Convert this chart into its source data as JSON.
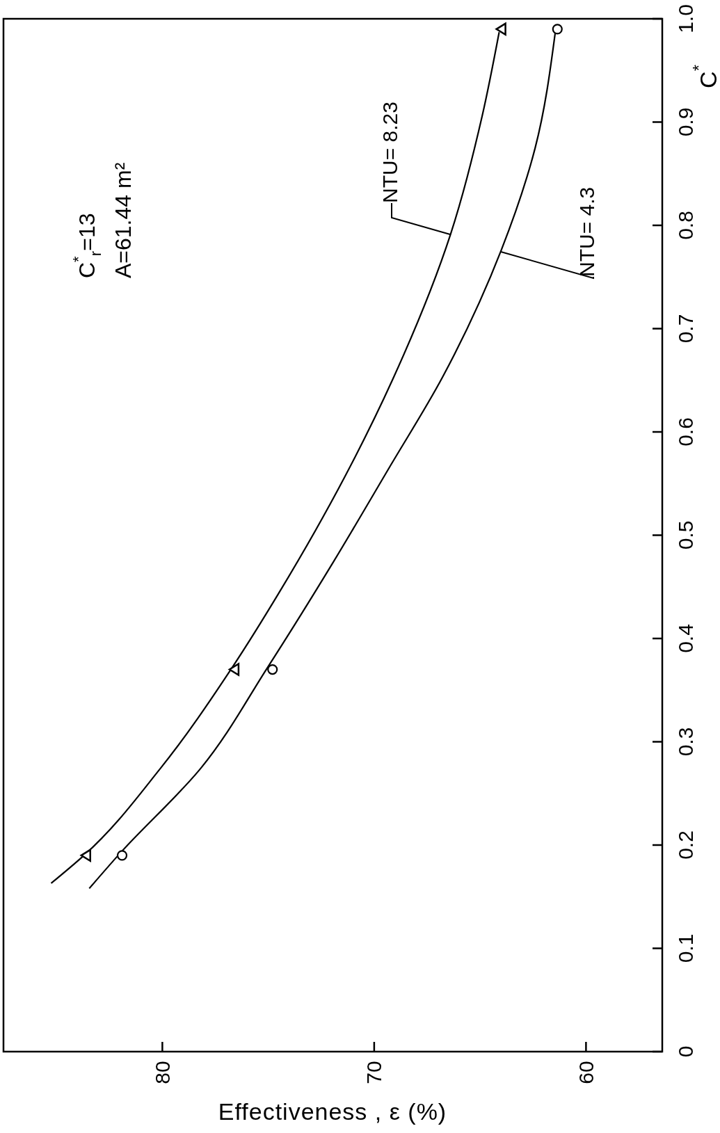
{
  "chart_data": {
    "type": "line",
    "xlabel": "Effectiveness , ε (%)",
    "ylabel": "C$^{*}$",
    "annotations": [
      "C$^{*}$$_{r}$=13",
      "A=61.44 m²"
    ],
    "xlim": [
      87.5,
      56.4
    ],
    "ylim": [
      0,
      1
    ],
    "xticks": [
      80,
      70,
      60
    ],
    "yticks": [
      0,
      0.1,
      0.2,
      0.3,
      0.4,
      0.5,
      0.6,
      0.7,
      0.8,
      0.9,
      {
        "value": 1,
        "label": "1.0"
      }
    ],
    "series": [
      {
        "name": "NTU= 8.23",
        "color": "#000000",
        "marker": "none",
        "x": [
          85.25,
          83.7,
          80.1,
          76.7,
          74.5,
          71.4,
          69.1,
          66.4,
          64.9,
          64.1
        ],
        "values": [
          0.163,
          0.19,
          0.274,
          0.372,
          0.444,
          0.556,
          0.652,
          0.791,
          0.906,
          0.987
        ]
      },
      {
        "name": "NTU= 4.3",
        "color": "#000000",
        "marker": "none",
        "x": [
          83.45,
          82.0,
          78.2,
          75.0,
          71.9,
          69.3,
          66.8,
          64.0,
          62.4,
          61.45
        ],
        "values": [
          0.158,
          0.192,
          0.274,
          0.373,
          0.475,
          0.565,
          0.652,
          0.776,
          0.875,
          0.987
        ]
      },
      {
        "type": "scatter",
        "color": "#000000",
        "marker": "triangle",
        "x": [
          83.6,
          76.6,
          64.0
        ],
        "values": [
          0.19,
          0.37,
          0.99
        ]
      },
      {
        "type": "scatter",
        "color": "#000000",
        "marker": "circle",
        "x": [
          81.9,
          74.8,
          61.35
        ],
        "values": [
          0.19,
          0.37,
          0.99
        ]
      }
    ]
  }
}
